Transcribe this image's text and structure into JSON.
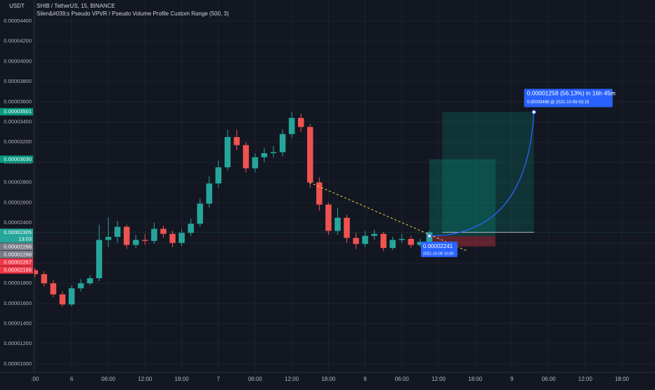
{
  "chart_data": {
    "type": "candlestick",
    "title": "SHIB / TetherUS, 15, BINANCE",
    "subtitle": "Silen&#039;s Pseudo VPVR / Pseudo Volume Profile Custom Range (500, 3)",
    "currency": "USDT",
    "up_color": "#26a69a",
    "down_color": "#ef5350",
    "grid": true,
    "x": [
      -6,
      -4.5,
      -3,
      -1.5,
      0,
      1.5,
      3,
      4.5,
      6,
      7.5,
      9,
      10.5,
      12,
      13.5,
      15,
      16.5,
      18,
      19.5,
      21,
      22.5,
      24,
      25.5,
      27,
      28.5,
      30,
      31.5,
      33,
      34.5,
      36,
      37.5,
      39,
      40.5,
      42,
      43.5,
      45,
      46.5,
      48,
      49.5,
      51,
      52.5,
      54,
      55.5,
      57,
      58.5
    ],
    "open": [
      1.93e-05,
      1.89e-05,
      1.8e-05,
      1.69e-05,
      1.59e-05,
      1.75e-05,
      1.8e-05,
      1.85e-05,
      2.23e-05,
      2.26e-05,
      2.36e-05,
      2.18e-05,
      2.23e-05,
      2.22e-05,
      2.34e-05,
      2.29e-05,
      2.2e-05,
      2.3e-05,
      2.39e-05,
      2.59e-05,
      2.79e-05,
      2.95e-05,
      3.25e-05,
      3.17e-05,
      2.94e-05,
      3.05e-05,
      3.09e-05,
      3.1e-05,
      3.28e-05,
      3.44e-05,
      3.35e-05,
      2.8e-05,
      2.58e-05,
      2.32e-05,
      2.45e-05,
      2.25e-05,
      2.19e-05,
      2.27e-05,
      2.29e-05,
      2.15e-05,
      2.23e-05,
      2.24e-05,
      2.18e-05,
      2.21e-05
    ],
    "high": [
      1.95e-05,
      1.92e-05,
      1.83e-05,
      1.72e-05,
      1.78e-05,
      1.84e-05,
      1.88e-05,
      2.38e-05,
      2.45e-05,
      2.42e-05,
      2.38e-05,
      2.28e-05,
      2.29e-05,
      2.4e-05,
      2.37e-05,
      2.32e-05,
      2.34e-05,
      2.44e-05,
      2.64e-05,
      2.86e-05,
      3.02e-05,
      3.32e-05,
      3.32e-05,
      3.2e-05,
      3.09e-05,
      3.14e-05,
      3.16e-05,
      3.33e-05,
      3.5e-05,
      3.48e-05,
      3.38e-05,
      2.85e-05,
      2.6e-05,
      2.55e-05,
      2.48e-05,
      2.3e-05,
      2.32e-05,
      2.33e-05,
      2.31e-05,
      2.26e-05,
      2.29e-05,
      2.27e-05,
      2.24e-05,
      2.32e-05
    ],
    "low": [
      1.86e-05,
      1.77e-05,
      1.66e-05,
      1.57e-05,
      1.57e-05,
      1.72e-05,
      1.78e-05,
      1.82e-05,
      2.16e-05,
      2.2e-05,
      2.14e-05,
      2.15e-05,
      2.18e-05,
      2.19e-05,
      2.25e-05,
      2.16e-05,
      2.17e-05,
      2.27e-05,
      2.36e-05,
      2.55e-05,
      2.75e-05,
      2.92e-05,
      3.12e-05,
      2.9e-05,
      2.9e-05,
      3e-05,
      3.05e-05,
      3.06e-05,
      3.24e-05,
      3.3e-05,
      2.75e-05,
      2.52e-05,
      2.28e-05,
      2.28e-05,
      2.2e-05,
      2.14e-05,
      2.16e-05,
      2.23e-05,
      2.12e-05,
      2.13e-05,
      2.2e-05,
      2.15e-05,
      2.16e-05,
      2.19e-05
    ],
    "close": [
      1.89e-05,
      1.8e-05,
      1.69e-05,
      1.59e-05,
      1.75e-05,
      1.8e-05,
      1.85e-05,
      2.23e-05,
      2.26e-05,
      2.36e-05,
      2.18e-05,
      2.23e-05,
      2.22e-05,
      2.34e-05,
      2.29e-05,
      2.2e-05,
      2.3e-05,
      2.39e-05,
      2.59e-05,
      2.79e-05,
      2.95e-05,
      3.25e-05,
      3.17e-05,
      2.94e-05,
      3.05e-05,
      3.09e-05,
      3.1e-05,
      3.28e-05,
      3.44e-05,
      3.35e-05,
      2.8e-05,
      2.58e-05,
      2.32e-05,
      2.45e-05,
      2.25e-05,
      2.19e-05,
      2.27e-05,
      2.29e-05,
      2.15e-05,
      2.23e-05,
      2.24e-05,
      2.18e-05,
      2.21e-05,
      2.305e-05
    ],
    "xlim": [
      -6.2,
      92.3
    ],
    "ylim": [
      9.16e-06,
      4.609e-05
    ],
    "yticks": [
      {
        "value": 1e-05,
        "label": "0.00001000"
      },
      {
        "value": 1.2e-05,
        "label": "0.00001200"
      },
      {
        "value": 1.4e-05,
        "label": "0.00001400"
      },
      {
        "value": 1.6e-05,
        "label": "0.00001600"
      },
      {
        "value": 1.8e-05,
        "label": "0.00001800"
      },
      {
        "value": 2e-05,
        "label": "0.00002000"
      },
      {
        "value": 2.2e-05,
        "label": "0.00002200"
      },
      {
        "value": 2.4e-05,
        "label": "0.00002400"
      },
      {
        "value": 2.6e-05,
        "label": "0.00002600"
      },
      {
        "value": 2.8e-05,
        "label": "0.00002800"
      },
      {
        "value": 3e-05,
        "label": "0.00003000"
      },
      {
        "value": 3.2e-05,
        "label": "0.00003200"
      },
      {
        "value": 3.4e-05,
        "label": "0.00003400"
      },
      {
        "value": 3.6e-05,
        "label": "0.00003600"
      },
      {
        "value": 3.8e-05,
        "label": "0.00003800"
      },
      {
        "value": 4e-05,
        "label": "0.00004000"
      },
      {
        "value": 4.2e-05,
        "label": "0.00004200"
      },
      {
        "value": 4.4e-05,
        "label": "0.00004400"
      }
    ],
    "xticks": [
      {
        "value": -6,
        "label": ":00"
      },
      {
        "value": 0,
        "label": "6"
      },
      {
        "value": 6,
        "label": "06:00"
      },
      {
        "value": 12,
        "label": "12:00"
      },
      {
        "value": 18,
        "label": "18:00"
      },
      {
        "value": 24,
        "label": "7"
      },
      {
        "value": 30,
        "label": "06:00"
      },
      {
        "value": 36,
        "label": "12:00"
      },
      {
        "value": 42,
        "label": "18:00"
      },
      {
        "value": 48,
        "label": "8"
      },
      {
        "value": 54,
        "label": "06:00"
      },
      {
        "value": 60,
        "label": "12:00"
      },
      {
        "value": 66,
        "label": "18:00"
      },
      {
        "value": 72,
        "label": "9"
      },
      {
        "value": 78,
        "label": "06:00"
      },
      {
        "value": 84,
        "label": "12:00"
      },
      {
        "value": 90,
        "label": "18:00"
      }
    ],
    "price_labels": [
      {
        "value": 3.501e-05,
        "label": "0.00003501",
        "color": "#089981"
      },
      {
        "value": 3.03e-05,
        "label": "0.00003030",
        "color": "#089981"
      },
      {
        "value": 2.305e-05,
        "label": "0.00002305",
        "color": "#26a69a",
        "countdown": "13:03"
      },
      {
        "value": 2.268e-05,
        "label": "0.00002268",
        "color": "#787b86"
      },
      {
        "value": 2.268e-05,
        "label": "0.00002268",
        "color": "#787b86"
      },
      {
        "value": 2.267e-05,
        "label": "0.00002267",
        "color": "#f23645"
      },
      {
        "value": 2.165e-05,
        "label": "0.00002165",
        "color": "#f23645"
      }
    ],
    "position": {
      "x": [
        58.5,
        69.3
      ],
      "entry": 2.268e-05,
      "target": 3.03e-05,
      "stop": 2.165e-05
    },
    "target_zone": {
      "x": [
        60.6,
        75.6
      ],
      "bottom": 2.305e-05,
      "top": 3.501e-05
    },
    "trendline": {
      "x": [
        38.9,
        64.7
      ],
      "y": [
        2.8e-05,
        2.12e-05
      ]
    },
    "projection": {
      "x": [
        58.5,
        75.6
      ],
      "y": [
        2.27e-05,
        3.498e-05
      ],
      "label": "0.00001258 (56.13%) in 16h 45m",
      "sublabel": "0.00003498 @ 2021-10-09  03:15"
    },
    "marker": {
      "x": 58.5,
      "y": 2.241e-05,
      "label": "0.00002241",
      "sublabel": "2021-10-08 10:30"
    }
  }
}
